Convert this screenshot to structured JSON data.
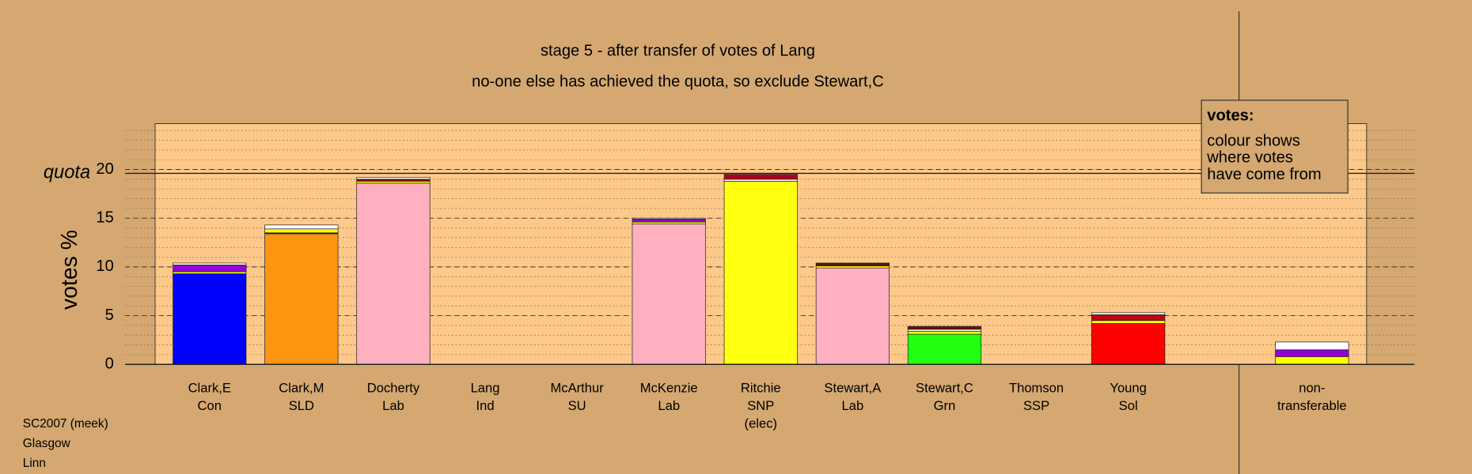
{
  "chart_data": {
    "type": "stacked-bar",
    "title": "stage 5 - after transfer of votes of Lang",
    "subtitle": "no-one else has achieved the quota, so exclude Stewart,C",
    "ylabel": "votes %",
    "quota": {
      "label": "quota",
      "value": 19.6
    },
    "ylim": [
      0,
      24.7
    ],
    "yticks": [
      0,
      5,
      10,
      15,
      20
    ],
    "minor_grid_step": 1,
    "grid": true,
    "background": "#d4a870",
    "plot_background": "#fdc98a",
    "categories": [
      [
        "Clark,E",
        "Con"
      ],
      [
        "Clark,M",
        "SLD"
      ],
      [
        "Docherty",
        "Lab"
      ],
      [
        "Lang",
        "Ind"
      ],
      [
        "McArthur",
        "SU"
      ],
      [
        "McKenzie",
        "Lab"
      ],
      [
        "Ritchie",
        "SNP",
        "(elec)"
      ],
      [
        "Stewart,A",
        "Lab"
      ],
      [
        "Stewart,C",
        "Grn"
      ],
      [
        "Thomson",
        "SSP"
      ],
      [
        "Young",
        "Sol"
      ],
      null,
      [
        "non-",
        "transferable"
      ]
    ],
    "bars": [
      {
        "segments": [
          {
            "color": "#0000ff",
            "value": 9.3
          },
          {
            "color": "#ffff00",
            "value": 0.2
          },
          {
            "color": "#9400d3",
            "value": 0.7
          },
          {
            "color": "#ffffff",
            "value": 0.2
          }
        ]
      },
      {
        "segments": [
          {
            "color": "#ff9410",
            "value": 13.4
          },
          {
            "color": "#8b0000",
            "value": 0.1
          },
          {
            "color": "#ffff00",
            "value": 0.4
          },
          {
            "color": "#ffffff",
            "value": 0.4
          }
        ]
      },
      {
        "segments": [
          {
            "color": "#ffb0c0",
            "value": 18.6
          },
          {
            "color": "#ffff00",
            "value": 0.2
          },
          {
            "color": "#8b0000",
            "value": 0.2
          },
          {
            "color": "#ffffff",
            "value": 0.2
          }
        ]
      },
      {
        "segments": []
      },
      {
        "segments": []
      },
      {
        "segments": [
          {
            "color": "#ffb0c0",
            "value": 14.4
          },
          {
            "color": "#ffff00",
            "value": 0.2
          },
          {
            "color": "#9400d3",
            "value": 0.3
          },
          {
            "color": "#ffffff",
            "value": 0.1
          }
        ]
      },
      {
        "segments": [
          {
            "color": "#ffff10",
            "value": 18.8
          },
          {
            "color": "#ffffff",
            "value": 0.2
          },
          {
            "color": "#b00020",
            "value": 0.5
          }
        ]
      },
      {
        "segments": [
          {
            "color": "#ffb0c0",
            "value": 9.9
          },
          {
            "color": "#ffff00",
            "value": 0.2
          },
          {
            "color": "#5a1a10",
            "value": 0.3
          }
        ]
      },
      {
        "segments": [
          {
            "color": "#22ff10",
            "value": 3.1
          },
          {
            "color": "#ffff00",
            "value": 0.3
          },
          {
            "color": "#ffffff",
            "value": 0.2
          },
          {
            "color": "#5a1a10",
            "value": 0.3
          }
        ]
      },
      {
        "segments": []
      },
      {
        "segments": [
          {
            "color": "#ff0000",
            "value": 4.2
          },
          {
            "color": "#ffff00",
            "value": 0.3
          },
          {
            "color": "#c00010",
            "value": 0.6
          },
          {
            "color": "#ffffff",
            "value": 0.2
          }
        ]
      },
      {
        "segments": []
      },
      {
        "segments": [
          {
            "color": "#ffff00",
            "value": 0.8
          },
          {
            "color": "#9400d3",
            "value": 0.7
          },
          {
            "color": "#ffffff",
            "value": 0.8
          }
        ]
      }
    ],
    "legend": {
      "title": "votes:",
      "lines": [
        "colour shows",
        "where votes",
        "have come from"
      ]
    },
    "footer": [
      "SC2007 (meek)",
      "Glasgow",
      "Linn"
    ]
  }
}
